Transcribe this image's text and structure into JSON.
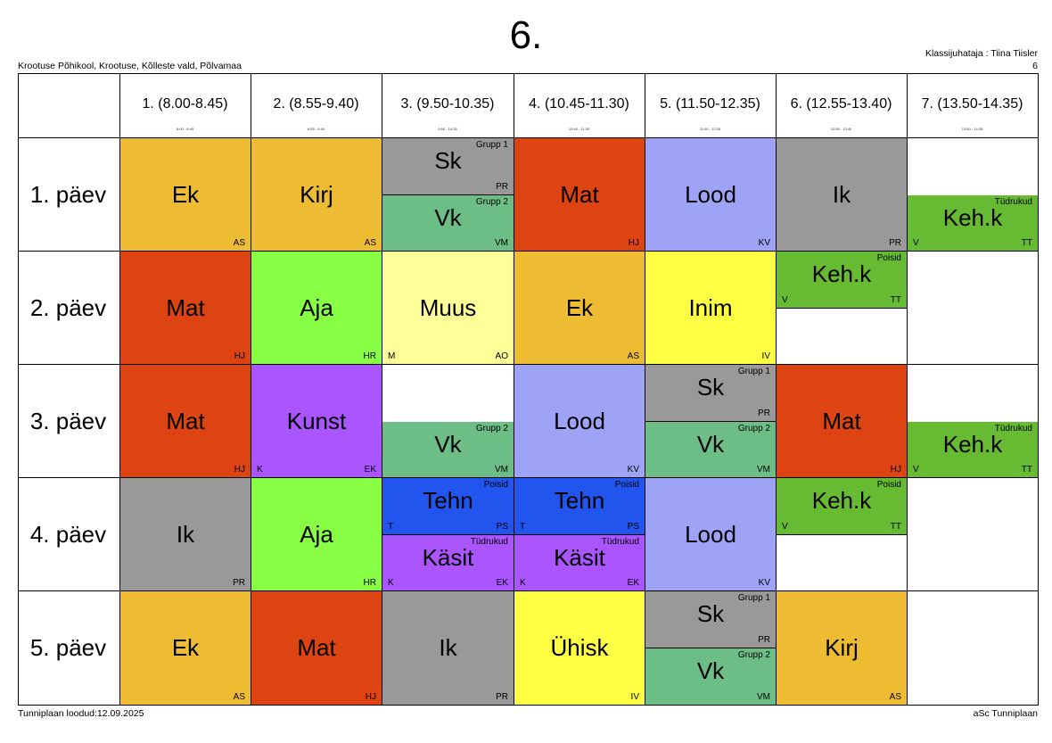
{
  "title": "6.",
  "school": "Krootuse Põhikool, Krootuse, Kõlleste vald, Põlvamaa",
  "class_teacher": "Klassijuhataja : Tiina Tiisler",
  "class_number": "6",
  "footer": {
    "created": "Tunniplaan loodud:12.09.2025",
    "app": "aSc Tunniplaan"
  },
  "periods": [
    {
      "label": "1. (8.00-8.45)",
      "time": "8:00 - 8:45"
    },
    {
      "label": "2. (8.55-9.40)",
      "time": "8:55 - 9:40"
    },
    {
      "label": "3. (9.50-10.35)",
      "time": "9:50 - 10:35"
    },
    {
      "label": "4. (10.45-11.30)",
      "time": "10:45 - 11:30"
    },
    {
      "label": "5. (11.50-12.35)",
      "time": "11:50 - 12:35"
    },
    {
      "label": "6. (12.55-13.40)",
      "time": "12:55 - 13:40"
    },
    {
      "label": "7. (13.50-14.35)",
      "time": "13:50 - 14:35"
    }
  ],
  "days": [
    "1. päev",
    "2. päev",
    "3. päev",
    "4. päev",
    "5. päev"
  ],
  "colors": {
    "ek": "#eebc33",
    "kirj": "#eebc33",
    "mat": "#dd4411",
    "lood": "#9fa3f6",
    "ik": "#999999",
    "sk": "#999999",
    "vk": "#6cbe86",
    "keh": "#66bb33",
    "aja": "#88ff44",
    "muus": "#ffff99",
    "inim": "#ffff44",
    "kunst": "#aa55ff",
    "tehn": "#2255ee",
    "kasit": "#aa55ff",
    "uhisk": "#ffff44"
  },
  "lessons": [
    {
      "day": 0,
      "period": 0,
      "part": "full",
      "subject": "Ek",
      "teacher": "AS",
      "room": "",
      "group": "",
      "color": "#eebc33"
    },
    {
      "day": 0,
      "period": 1,
      "part": "full",
      "subject": "Kirj",
      "teacher": "AS",
      "room": "",
      "group": "",
      "color": "#eebc33"
    },
    {
      "day": 0,
      "period": 2,
      "part": "top",
      "subject": "Sk",
      "teacher": "PR",
      "room": "",
      "group": "Grupp 1",
      "color": "#999999"
    },
    {
      "day": 0,
      "period": 2,
      "part": "bottom",
      "subject": "Vk",
      "teacher": "VM",
      "room": "",
      "group": "Grupp 2",
      "color": "#6cbe86"
    },
    {
      "day": 0,
      "period": 3,
      "part": "full",
      "subject": "Mat",
      "teacher": "HJ",
      "room": "",
      "group": "",
      "color": "#dd4411"
    },
    {
      "day": 0,
      "period": 4,
      "part": "full",
      "subject": "Lood",
      "teacher": "KV",
      "room": "",
      "group": "",
      "color": "#9fa3f6"
    },
    {
      "day": 0,
      "period": 5,
      "part": "full",
      "subject": "Ik",
      "teacher": "PR",
      "room": "",
      "group": "",
      "color": "#999999"
    },
    {
      "day": 0,
      "period": 6,
      "part": "bottom",
      "subject": "Keh.k",
      "teacher": "TT",
      "room": "V",
      "group": "Tüdrukud",
      "color": "#66bb33"
    },
    {
      "day": 1,
      "period": 0,
      "part": "full",
      "subject": "Mat",
      "teacher": "HJ",
      "room": "",
      "group": "",
      "color": "#dd4411"
    },
    {
      "day": 1,
      "period": 1,
      "part": "full",
      "subject": "Aja",
      "teacher": "HR",
      "room": "",
      "group": "",
      "color": "#88ff44"
    },
    {
      "day": 1,
      "period": 2,
      "part": "full",
      "subject": "Muus",
      "teacher": "AO",
      "room": "M",
      "group": "",
      "color": "#ffff99"
    },
    {
      "day": 1,
      "period": 3,
      "part": "full",
      "subject": "Ek",
      "teacher": "AS",
      "room": "",
      "group": "",
      "color": "#eebc33"
    },
    {
      "day": 1,
      "period": 4,
      "part": "full",
      "subject": "Inim",
      "teacher": "IV",
      "room": "",
      "group": "",
      "color": "#ffff44"
    },
    {
      "day": 1,
      "period": 5,
      "part": "top",
      "subject": "Keh.k",
      "teacher": "TT",
      "room": "V",
      "group": "Poisid",
      "color": "#66bb33"
    },
    {
      "day": 2,
      "period": 0,
      "part": "full",
      "subject": "Mat",
      "teacher": "HJ",
      "room": "",
      "group": "",
      "color": "#dd4411"
    },
    {
      "day": 2,
      "period": 1,
      "part": "full",
      "subject": "Kunst",
      "teacher": "EK",
      "room": "K",
      "group": "",
      "color": "#aa55ff"
    },
    {
      "day": 2,
      "period": 2,
      "part": "bottom",
      "subject": "Vk",
      "teacher": "VM",
      "room": "",
      "group": "Grupp 2",
      "color": "#6cbe86"
    },
    {
      "day": 2,
      "period": 3,
      "part": "full",
      "subject": "Lood",
      "teacher": "KV",
      "room": "",
      "group": "",
      "color": "#9fa3f6"
    },
    {
      "day": 2,
      "period": 4,
      "part": "top",
      "subject": "Sk",
      "teacher": "PR",
      "room": "",
      "group": "Grupp 1",
      "color": "#999999"
    },
    {
      "day": 2,
      "period": 4,
      "part": "bottom",
      "subject": "Vk",
      "teacher": "VM",
      "room": "",
      "group": "Grupp 2",
      "color": "#6cbe86"
    },
    {
      "day": 2,
      "period": 5,
      "part": "full",
      "subject": "Mat",
      "teacher": "HJ",
      "room": "",
      "group": "",
      "color": "#dd4411"
    },
    {
      "day": 2,
      "period": 6,
      "part": "bottom",
      "subject": "Keh.k",
      "teacher": "TT",
      "room": "V",
      "group": "Tüdrukud",
      "color": "#66bb33"
    },
    {
      "day": 3,
      "period": 0,
      "part": "full",
      "subject": "Ik",
      "teacher": "PR",
      "room": "",
      "group": "",
      "color": "#999999"
    },
    {
      "day": 3,
      "period": 1,
      "part": "full",
      "subject": "Aja",
      "teacher": "HR",
      "room": "",
      "group": "",
      "color": "#88ff44"
    },
    {
      "day": 3,
      "period": 2,
      "part": "top",
      "subject": "Tehn",
      "teacher": "PS",
      "room": "T",
      "group": "Poisid",
      "color": "#2255ee"
    },
    {
      "day": 3,
      "period": 2,
      "part": "bottom",
      "subject": "Käsit",
      "teacher": "EK",
      "room": "K",
      "group": "Tüdrukud",
      "color": "#aa55ff"
    },
    {
      "day": 3,
      "period": 3,
      "part": "top",
      "subject": "Tehn",
      "teacher": "PS",
      "room": "T",
      "group": "Poisid",
      "color": "#2255ee"
    },
    {
      "day": 3,
      "period": 3,
      "part": "bottom",
      "subject": "Käsit",
      "teacher": "EK",
      "room": "K",
      "group": "Tüdrukud",
      "color": "#aa55ff"
    },
    {
      "day": 3,
      "period": 4,
      "part": "full",
      "subject": "Lood",
      "teacher": "KV",
      "room": "",
      "group": "",
      "color": "#9fa3f6"
    },
    {
      "day": 3,
      "period": 5,
      "part": "top",
      "subject": "Keh.k",
      "teacher": "TT",
      "room": "V",
      "group": "Poisid",
      "color": "#66bb33"
    },
    {
      "day": 4,
      "period": 0,
      "part": "full",
      "subject": "Ek",
      "teacher": "AS",
      "room": "",
      "group": "",
      "color": "#eebc33"
    },
    {
      "day": 4,
      "period": 1,
      "part": "full",
      "subject": "Mat",
      "teacher": "HJ",
      "room": "",
      "group": "",
      "color": "#dd4411"
    },
    {
      "day": 4,
      "period": 2,
      "part": "full",
      "subject": "Ik",
      "teacher": "PR",
      "room": "",
      "group": "",
      "color": "#999999"
    },
    {
      "day": 4,
      "period": 3,
      "part": "full",
      "subject": "Ühisk",
      "teacher": "IV",
      "room": "",
      "group": "",
      "color": "#ffff44"
    },
    {
      "day": 4,
      "period": 4,
      "part": "top",
      "subject": "Sk",
      "teacher": "PR",
      "room": "",
      "group": "Grupp 1",
      "color": "#999999"
    },
    {
      "day": 4,
      "period": 4,
      "part": "bottom",
      "subject": "Vk",
      "teacher": "VM",
      "room": "",
      "group": "Grupp 2",
      "color": "#6cbe86"
    },
    {
      "day": 4,
      "period": 5,
      "part": "full",
      "subject": "Kirj",
      "teacher": "AS",
      "room": "",
      "group": "",
      "color": "#eebc33"
    }
  ]
}
